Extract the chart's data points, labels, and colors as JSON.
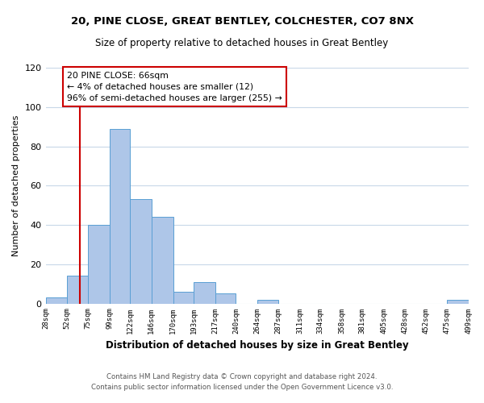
{
  "title_line1": "20, PINE CLOSE, GREAT BENTLEY, COLCHESTER, CO7 8NX",
  "title_line2": "Size of property relative to detached houses in Great Bentley",
  "xlabel": "Distribution of detached houses by size in Great Bentley",
  "ylabel": "Number of detached properties",
  "bar_edges": [
    28,
    52,
    75,
    99,
    122,
    146,
    170,
    193,
    217,
    240,
    264,
    287,
    311,
    334,
    358,
    381,
    405,
    428,
    452,
    475,
    499
  ],
  "bar_heights": [
    3,
    14,
    40,
    89,
    53,
    44,
    6,
    11,
    5,
    0,
    2,
    0,
    0,
    0,
    0,
    0,
    0,
    0,
    0,
    2
  ],
  "bar_color": "#aec6e8",
  "bar_edge_color": "#5a9fd4",
  "vline_x": 66,
  "vline_color": "#cc0000",
  "annotation_text": "20 PINE CLOSE: 66sqm\n← 4% of detached houses are smaller (12)\n96% of semi-detached houses are larger (255) →",
  "annotation_box_color": "#cc0000",
  "annotation_text_color": "#000000",
  "footer_line1": "Contains HM Land Registry data © Crown copyright and database right 2024.",
  "footer_line2": "Contains public sector information licensed under the Open Government Licence v3.0.",
  "ylim": [
    0,
    120
  ],
  "yticks": [
    0,
    20,
    40,
    60,
    80,
    100,
    120
  ],
  "tick_labels": [
    "28sqm",
    "52sqm",
    "75sqm",
    "99sqm",
    "122sqm",
    "146sqm",
    "170sqm",
    "193sqm",
    "217sqm",
    "240sqm",
    "264sqm",
    "287sqm",
    "311sqm",
    "334sqm",
    "358sqm",
    "381sqm",
    "405sqm",
    "428sqm",
    "452sqm",
    "475sqm",
    "499sqm"
  ],
  "background_color": "#ffffff",
  "grid_color": "#c8d8e8"
}
